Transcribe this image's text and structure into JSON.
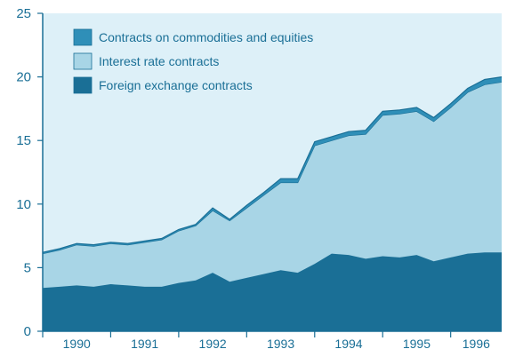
{
  "chart_data": {
    "type": "area",
    "stacked": true,
    "title": "",
    "xlabel": "",
    "ylabel": "",
    "ylim": [
      0,
      25
    ],
    "y_ticks": [
      0,
      5,
      10,
      15,
      20,
      25
    ],
    "x_tick_labels": [
      "1990",
      "1991",
      "1992",
      "1993",
      "1994",
      "1995",
      "1996"
    ],
    "x": [
      "1990Q1",
      "1990Q2",
      "1990Q3",
      "1990Q4",
      "1991Q1",
      "1991Q2",
      "1991Q3",
      "1991Q4",
      "1992Q1",
      "1992Q2",
      "1992Q3",
      "1992Q4",
      "1993Q1",
      "1993Q2",
      "1993Q3",
      "1993Q4",
      "1994Q1",
      "1994Q2",
      "1994Q3",
      "1994Q4",
      "1995Q1",
      "1995Q2",
      "1995Q3",
      "1995Q4",
      "1996Q1",
      "1996Q2",
      "1996Q3",
      "1996Q4"
    ],
    "grid": false,
    "legend": "top-left",
    "series": [
      {
        "name": "Foreign exchange contracts",
        "color": "#1a6f96",
        "values": [
          3.4,
          3.5,
          3.6,
          3.5,
          3.7,
          3.6,
          3.5,
          3.5,
          3.8,
          4.0,
          4.6,
          3.9,
          4.2,
          4.5,
          4.8,
          4.6,
          5.3,
          6.1,
          6.0,
          5.7,
          5.9,
          5.8,
          6.0,
          5.5,
          5.8,
          6.1,
          6.2,
          6.2
        ]
      },
      {
        "name": "Interest rate contracts",
        "color": "#a8d5e6",
        "values": [
          2.7,
          2.9,
          3.2,
          3.2,
          3.2,
          3.2,
          3.5,
          3.7,
          4.1,
          4.3,
          4.9,
          4.8,
          5.5,
          6.2,
          6.9,
          7.1,
          9.3,
          8.9,
          9.4,
          9.8,
          11.1,
          11.3,
          11.3,
          11.0,
          11.8,
          12.7,
          13.2,
          13.4
        ]
      },
      {
        "name": "Contracts on commodities and equities",
        "color": "#2f8fb8",
        "values": [
          0.1,
          0.1,
          0.1,
          0.1,
          0.1,
          0.1,
          0.1,
          0.1,
          0.1,
          0.1,
          0.2,
          0.1,
          0.2,
          0.2,
          0.3,
          0.3,
          0.3,
          0.3,
          0.3,
          0.3,
          0.3,
          0.3,
          0.3,
          0.3,
          0.3,
          0.3,
          0.4,
          0.4
        ]
      }
    ],
    "legend_order": [
      "Contracts on commodities and equities",
      "Interest rate contracts",
      "Foreign exchange contracts"
    ],
    "colors": {
      "plot_background": "#ddf0f8",
      "axis": "#1a6f96",
      "tick_text": "#1a6f96",
      "legend_text": "#1a6f96",
      "series_outline": "#1a6f96"
    }
  }
}
